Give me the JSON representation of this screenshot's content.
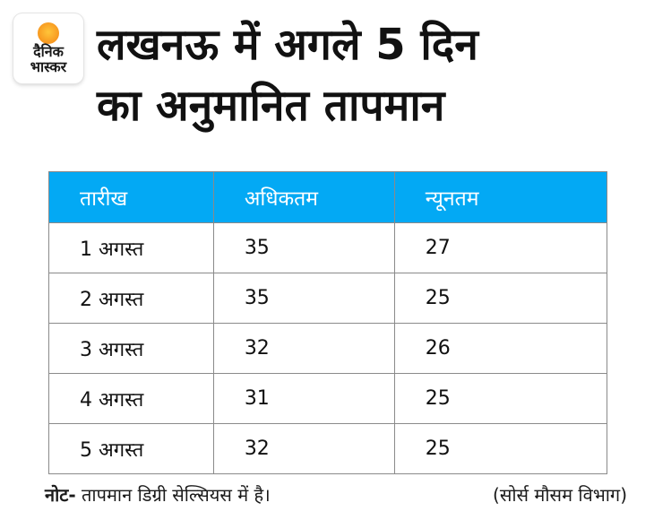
{
  "logo": {
    "text": "दैनिक\nभास्कर",
    "sun_color": "#f7941d"
  },
  "title": {
    "line1": "लखनऊ में अगले 5 दिन",
    "line2": "का अनुमानित तापमान"
  },
  "table": {
    "header_color": "#03a9f4",
    "headers": [
      "तारीख",
      "अधिकतम",
      "न्यूनतम"
    ],
    "rows": [
      [
        "1 अगस्त",
        "35",
        "27"
      ],
      [
        "2 अगस्त",
        "35",
        "25"
      ],
      [
        "3 अगस्त",
        "32",
        "26"
      ],
      [
        "4 अगस्त",
        "31",
        "25"
      ],
      [
        "5 अगस्त",
        "32",
        "25"
      ]
    ]
  },
  "note": {
    "label": "नोट-",
    "text": " तापमान डिग्री सेल्सियस में है।"
  },
  "source": "(सोर्स मौसम विभाग)"
}
